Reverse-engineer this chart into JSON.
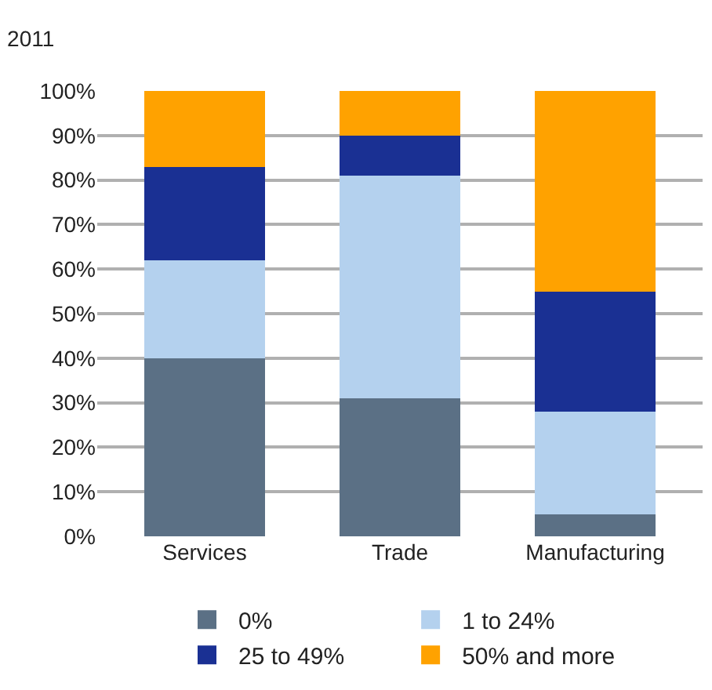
{
  "chart_data": {
    "type": "bar",
    "stacked": true,
    "title": "2011",
    "categories": [
      "Services",
      "Trade",
      "Manufacturing"
    ],
    "series": [
      {
        "name": "0%",
        "color": "#5b7085",
        "values": [
          40,
          31,
          5
        ]
      },
      {
        "name": "1 to 24%",
        "color": "#b4d1ee",
        "values": [
          22,
          50,
          23
        ]
      },
      {
        "name": "25 to 49%",
        "color": "#1a3093",
        "values": [
          21,
          9,
          27
        ]
      },
      {
        "name": "50% and more",
        "color": "#ffa200",
        "values": [
          17,
          10,
          45
        ]
      }
    ],
    "ylim": [
      0,
      100
    ],
    "yticks": [
      {
        "value": 0,
        "label": "0%"
      },
      {
        "value": 10,
        "label": "10%"
      },
      {
        "value": 20,
        "label": "20%"
      },
      {
        "value": 30,
        "label": "30%"
      },
      {
        "value": 40,
        "label": "40%"
      },
      {
        "value": 50,
        "label": "50%"
      },
      {
        "value": 60,
        "label": "60%"
      },
      {
        "value": 70,
        "label": "70%"
      },
      {
        "value": 80,
        "label": "80%"
      },
      {
        "value": 90,
        "label": "90%"
      },
      {
        "value": 100,
        "label": "100%"
      }
    ],
    "grid": "y",
    "legend": "bottom"
  }
}
